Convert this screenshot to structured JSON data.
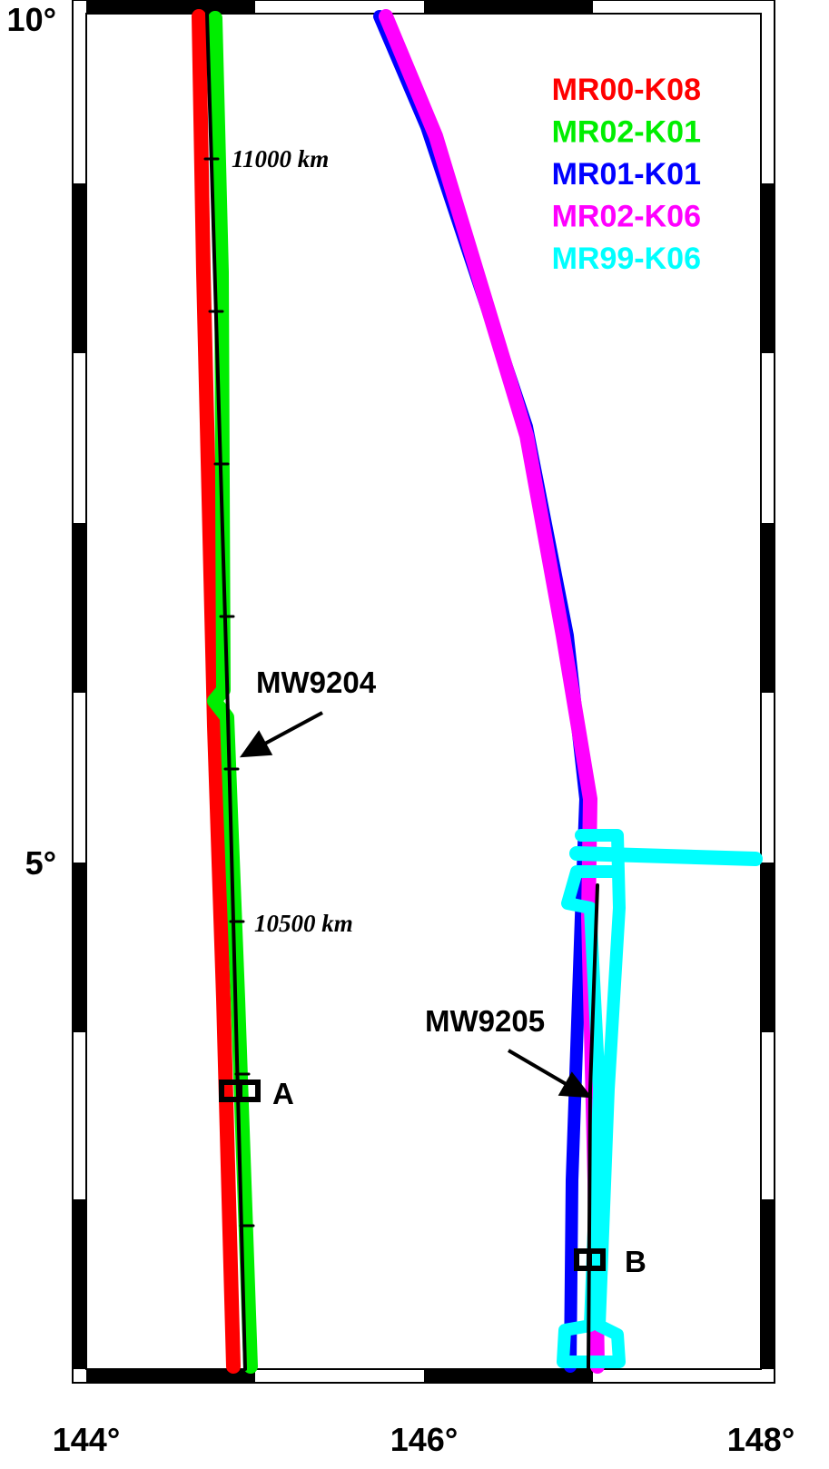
{
  "axes": {
    "x_labels": [
      "144°",
      "146°",
      "148°"
    ],
    "y_labels": [
      "10°",
      "5°"
    ]
  },
  "legend": [
    {
      "name": "MR00-K08",
      "color": "#ff0000"
    },
    {
      "name": "MR02-K01",
      "color": "#00ee00"
    },
    {
      "name": "MR01-K01",
      "color": "#0000ff"
    },
    {
      "name": "MR02-K06",
      "color": "#ff00ff"
    },
    {
      "name": "MR99-K06",
      "color": "#00ffff"
    }
  ],
  "annotations": {
    "distance_top": "11000 km",
    "distance_bottom": "10500 km",
    "mooring_1": "MW9204",
    "mooring_2": "MW9205",
    "site_a": "A",
    "site_b": "B"
  }
}
